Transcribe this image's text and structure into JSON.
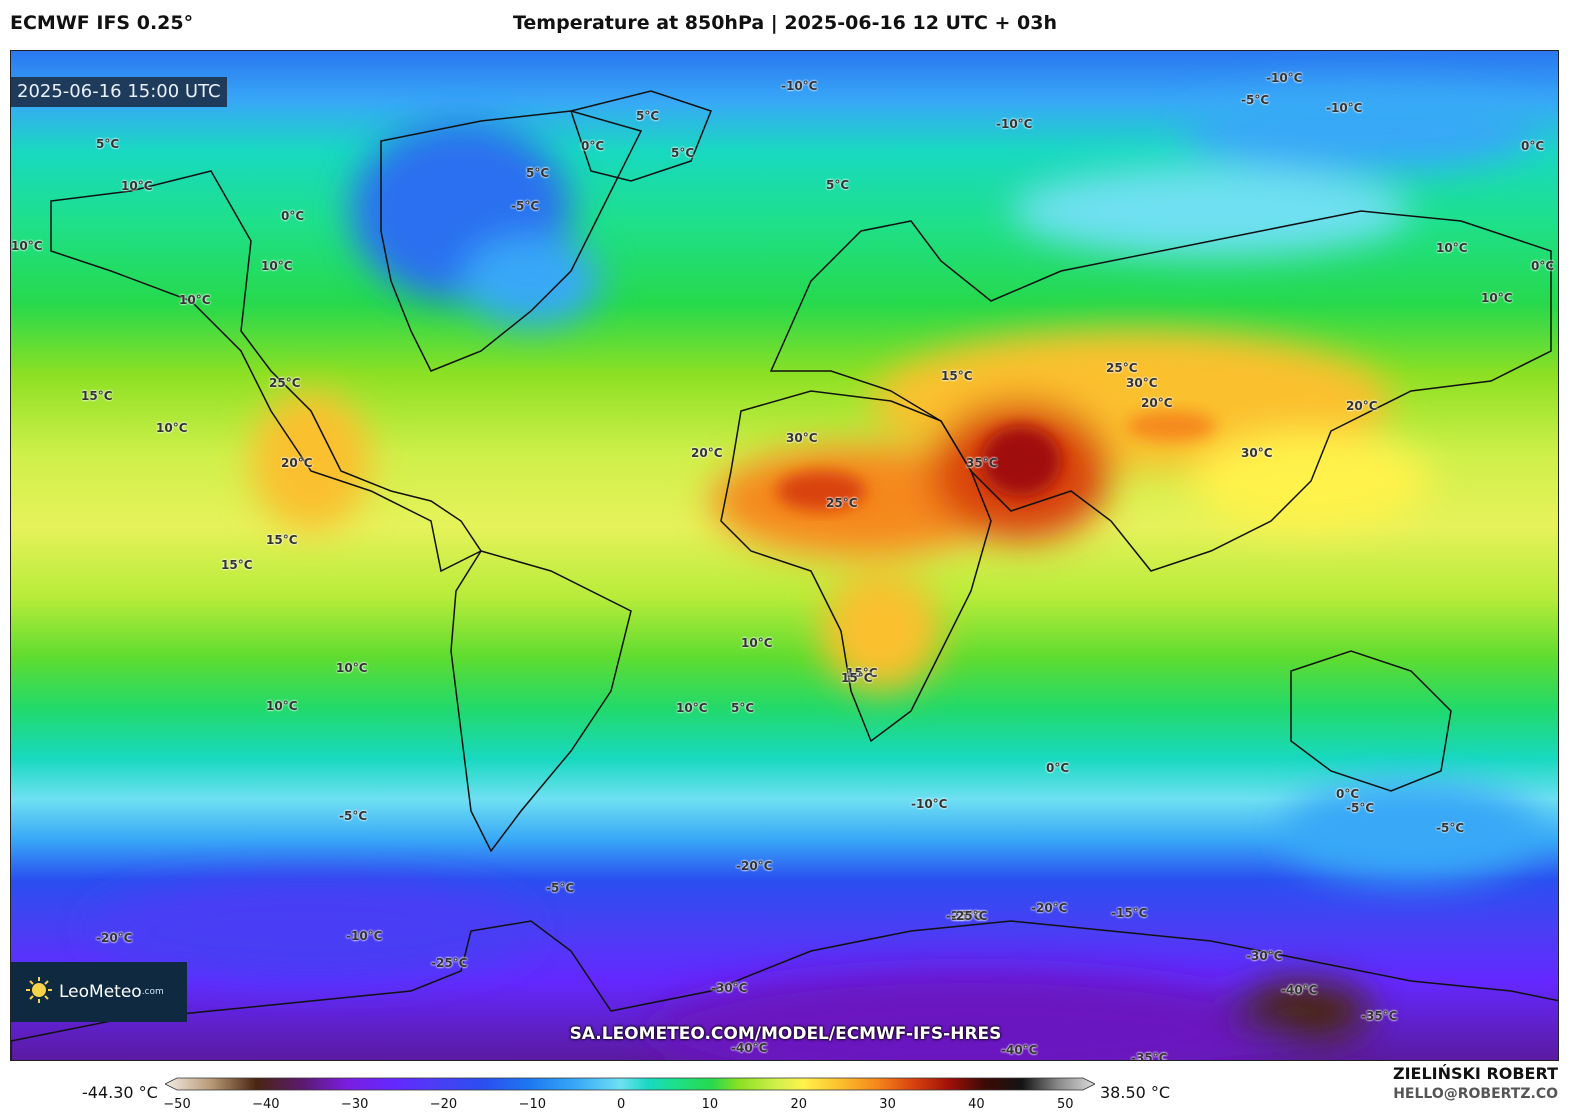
{
  "header": {
    "model": "ECMWF IFS 0.25°",
    "title": "Temperature at 850hPa | 2025-06-16 12 UTC + 03h"
  },
  "map": {
    "valid_time": "2025-06-16 15:00 UTC",
    "watermark_url": "SA.LEOMETEO.COM/MODEL/ECMWF-IFS-HRES",
    "logo": {
      "name": "LeoMeteo",
      "suffix": ".com",
      "icon": "sun-icon"
    },
    "contour_labels": [
      "-10°C",
      "-10°C",
      "-10°C",
      "-10°C",
      "-5°C",
      "-5°C",
      "0°C",
      "5°C",
      "5°C",
      "5°C",
      "5°C",
      "10°C",
      "10°C",
      "10°C",
      "0°C",
      "10°C",
      "0°C",
      "0°C",
      "5°C",
      "15°C",
      "10°C",
      "25°C",
      "20°C",
      "30°C",
      "20°C",
      "25°C",
      "15°C",
      "30°C",
      "35°C",
      "25°C",
      "20°C",
      "30°C",
      "20°C",
      "10°C",
      "10°C",
      "15°C",
      "15°C",
      "15°C",
      "10°C",
      "10°C",
      "10°C",
      "5°C",
      "15°C",
      "10°C",
      "0°C",
      "-5°C",
      "-10°C",
      "-5°C",
      "-20°C",
      "-25°C",
      "-20°C",
      "-15°C",
      "-30°C",
      "-30°C",
      "-40°C",
      "-35°C",
      "-25°C",
      "-25°C",
      "-20°C",
      "-10°C",
      "-5°C",
      "-40°C",
      "-40°C",
      "-35°C",
      "0°C",
      "-5°C"
    ]
  },
  "colorbar": {
    "min_label": "-44.30 °C",
    "max_label": "38.50 °C",
    "ticks": [
      "−50",
      "−40",
      "−30",
      "−20",
      "−10",
      "0",
      "10",
      "20",
      "30",
      "40",
      "50"
    ],
    "stops": [
      {
        "v": -50,
        "c": "#f2ede4"
      },
      {
        "v": -45,
        "c": "#b99a78"
      },
      {
        "v": -40,
        "c": "#4a2510"
      },
      {
        "v": -35,
        "c": "#5b1a6e"
      },
      {
        "v": -30,
        "c": "#7a1ee0"
      },
      {
        "v": -25,
        "c": "#6428ff"
      },
      {
        "v": -20,
        "c": "#4a3ef5"
      },
      {
        "v": -15,
        "c": "#2a4ff0"
      },
      {
        "v": -10,
        "c": "#1e78f0"
      },
      {
        "v": -5,
        "c": "#38a8f7"
      },
      {
        "v": 0,
        "c": "#6fe0f2"
      },
      {
        "v": 3,
        "c": "#18d9c0"
      },
      {
        "v": 6,
        "c": "#1ee08a"
      },
      {
        "v": 10,
        "c": "#26d94c"
      },
      {
        "v": 13,
        "c": "#8de024"
      },
      {
        "v": 17,
        "c": "#cff04a"
      },
      {
        "v": 20,
        "c": "#fff24c"
      },
      {
        "v": 24,
        "c": "#fbc02d"
      },
      {
        "v": 28,
        "c": "#f5881c"
      },
      {
        "v": 32,
        "c": "#d9430f"
      },
      {
        "v": 36,
        "c": "#a01008"
      },
      {
        "v": 40,
        "c": "#3a0a05"
      },
      {
        "v": 44,
        "c": "#141414"
      },
      {
        "v": 48,
        "c": "#8a8a8a"
      },
      {
        "v": 52,
        "c": "#dcdcdc"
      }
    ]
  },
  "credits": {
    "author": "ZIELIŃSKI ROBERT",
    "email": "HELLO@ROBERTZ.CO"
  }
}
